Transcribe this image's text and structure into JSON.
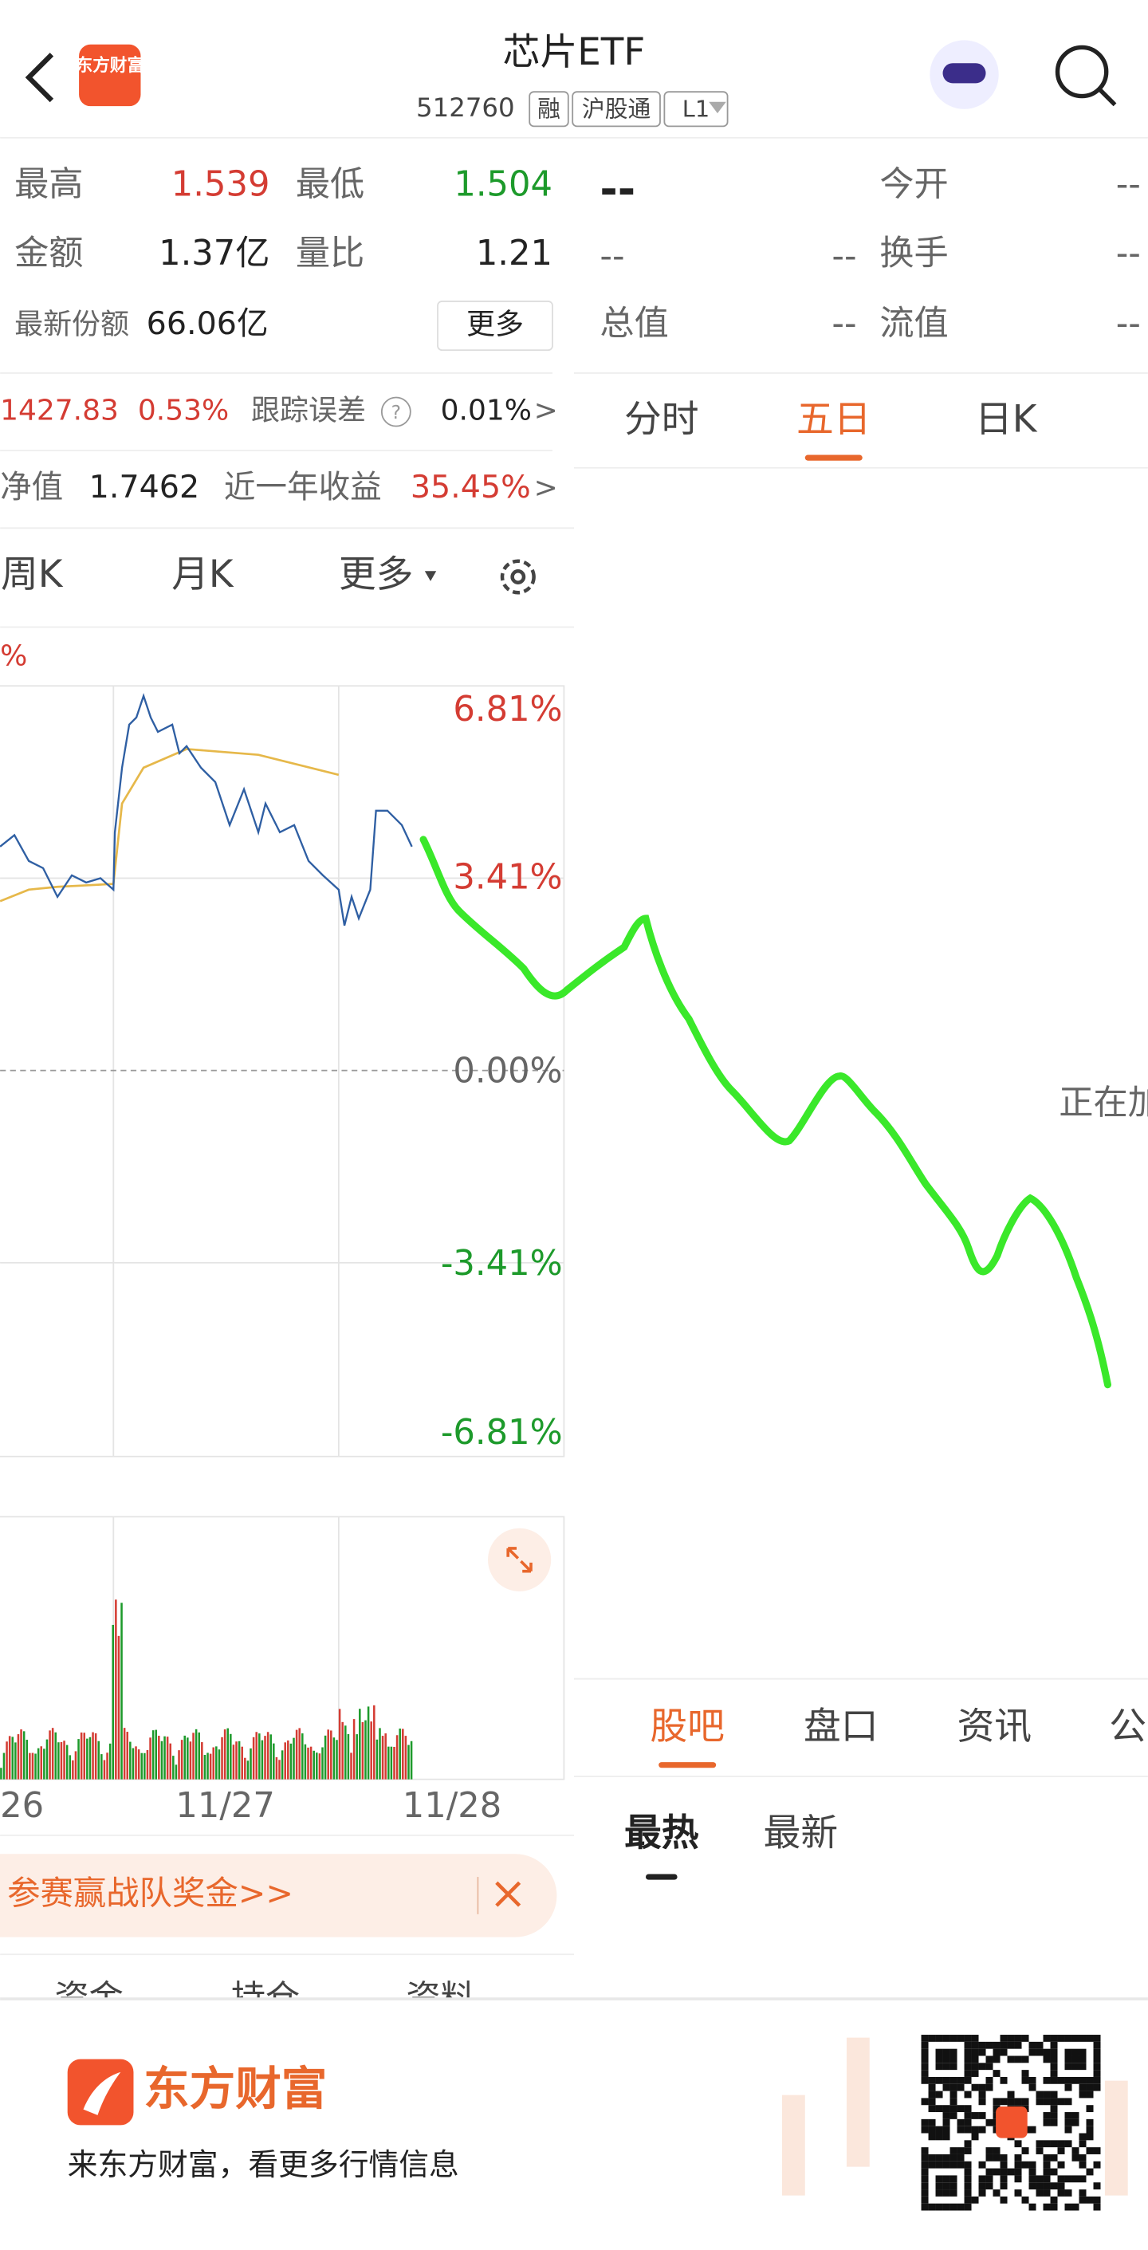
{
  "header": {
    "title": "芯片ETF",
    "code": "512760",
    "tags": [
      "融",
      "沪股通",
      "L1"
    ],
    "logo": "东方财富"
  },
  "stats": {
    "rows": [
      [
        "最高",
        "1.539",
        "最低",
        "1.504"
      ],
      [
        "金额",
        "1.37亿",
        "量比",
        "1.21"
      ]
    ],
    "share_label": "最新份额",
    "share_value": "66.06亿",
    "more": "更多"
  },
  "quote_panel": {
    "price": "--",
    "rows": [
      [
        "今开",
        "--"
      ],
      [
        "--",
        "--",
        "换手",
        "--"
      ],
      [
        "总值",
        "--",
        "流值",
        "--"
      ]
    ]
  },
  "index_row": {
    "value": "1427.83",
    "change": "0.53%",
    "label": "跟踪误差",
    "help": "?",
    "error": "0.01%",
    "arrow": ">"
  },
  "nav_row": {
    "label": "净值",
    "value": "1.7462",
    "return_label": "近一年收益",
    "return_value": "35.45%",
    "arrow": ">"
  },
  "kline_tabs": [
    "周K",
    "月K",
    "更多"
  ],
  "chart": {
    "top_label": "%",
    "y_labels": [
      "6.81%",
      "3.41%",
      "0.00%",
      "-3.41%",
      "-6.81%"
    ],
    "dates": [
      "26",
      "11/27",
      "11/28"
    ]
  },
  "right_tabs": {
    "items": [
      "分时",
      "五日",
      "日K"
    ],
    "loading": "正在加载"
  },
  "banner": {
    "text": "参赛赢战队奖金>>"
  },
  "bottom_tabs": [
    "资金",
    "持仓",
    "资料"
  ],
  "forum_tabs": [
    "股吧",
    "盘口",
    "资讯",
    "公告"
  ],
  "sort_tabs": [
    "最热",
    "最新"
  ],
  "footer": {
    "brand": "东方财富",
    "tagline": "来东方财富，看更多行情信息"
  }
}
